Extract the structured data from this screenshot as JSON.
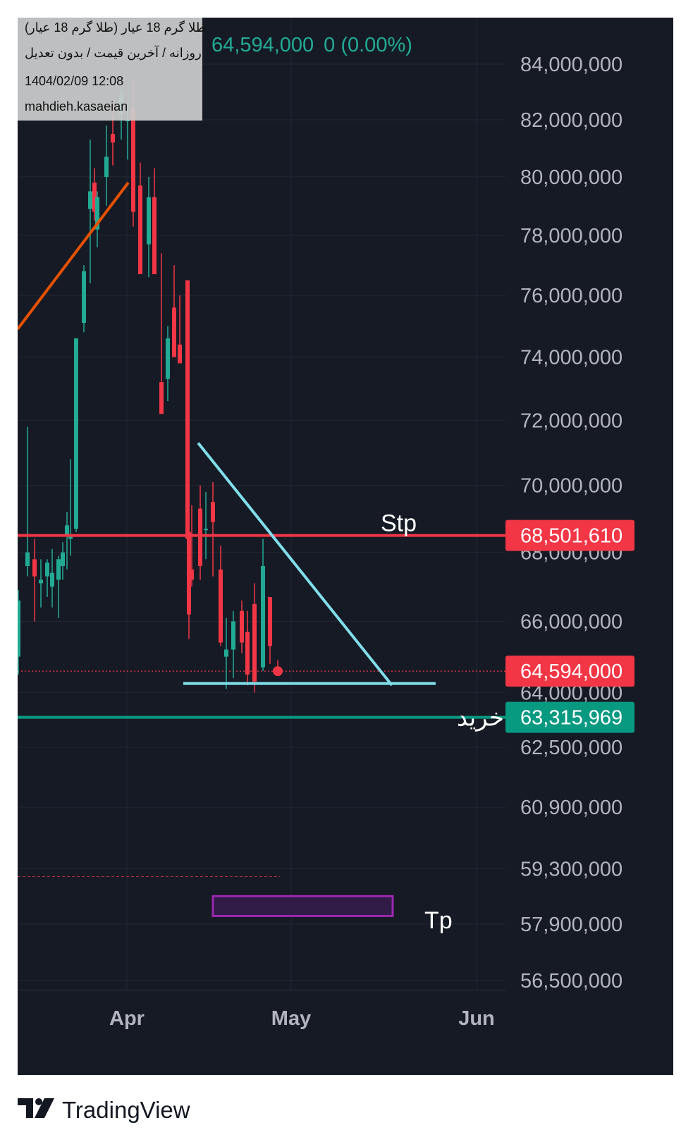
{
  "header": {
    "symbol_title": "طلا گرم 18 عیار (طلا گرم 18 عیار)",
    "settings": "روزانه / آخرین قیمت / بدون تعدیل",
    "datetime": "1404/02/09 12:08",
    "author": "mahdieh.kasaeian",
    "last_price": "64,594,000",
    "change": "0 (0.00%)"
  },
  "colors": {
    "background": "#161a25",
    "up": "#22ab94",
    "down": "#f23645",
    "axis_text": "#b2b5be",
    "trendline": "#80deea",
    "uptrend": "#e65100",
    "zone": "#9c27b0"
  },
  "chart_data": {
    "type": "candlestick",
    "y_axis": {
      "ticks": [
        "84,000,000",
        "82,000,000",
        "80,000,000",
        "78,000,000",
        "76,000,000",
        "74,000,000",
        "72,000,000",
        "70,000,000",
        "68,000,000",
        "66,000,000",
        "64,000,000",
        "62,500,000",
        "60,900,000",
        "59,300,000",
        "57,900,000",
        "56,500,000"
      ],
      "scale": "log"
    },
    "x_axis": {
      "ticks": [
        "Apr",
        "May",
        "Jun"
      ]
    },
    "price_tags": [
      {
        "value": "68,501,610",
        "color": "#f23645"
      },
      {
        "value": "64,594,000",
        "color": "#f23645"
      },
      {
        "value": "63,315,969",
        "color": "#089981"
      }
    ],
    "annotations": {
      "stop": "Stp",
      "buy": "خرید",
      "target": "Tp"
    },
    "levels": {
      "stop": 68501610,
      "last": 64594000,
      "buy": 63315969
    }
  },
  "footer": {
    "brand": "TradingView"
  }
}
